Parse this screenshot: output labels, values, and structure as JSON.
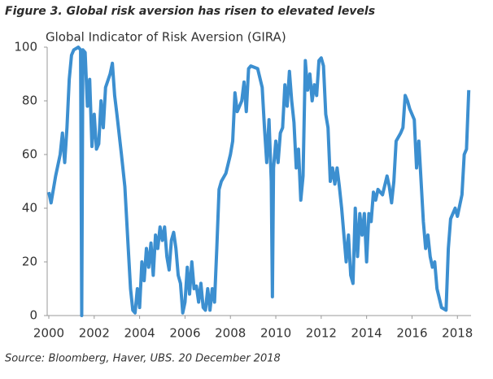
{
  "chart_data": {
    "type": "line",
    "title": "Figure 3. Global risk aversion has risen to elevated levels",
    "subtitle": "Global Indicator of Risk Aversion (GIRA)",
    "source": "Source: Bloomberg, Haver, UBS. 20 December 2018",
    "xlim": [
      2000,
      2018.6
    ],
    "xticks": [
      2000,
      2002,
      2004,
      2006,
      2008,
      2010,
      2012,
      2014,
      2016,
      2018
    ],
    "ylim": [
      0,
      100
    ],
    "yticks": [
      0,
      20,
      40,
      60,
      80,
      100
    ],
    "grid": false,
    "x": [
      2000.0,
      2000.1,
      2000.3,
      2000.5,
      2000.6,
      2000.7,
      2000.8,
      2000.9,
      2001.0,
      2001.1,
      2001.3,
      2001.4,
      2001.45,
      2001.5,
      2001.6,
      2001.7,
      2001.8,
      2001.9,
      2002.0,
      2002.1,
      2002.2,
      2002.3,
      2002.4,
      2002.5,
      2002.7,
      2002.8,
      2002.9,
      2003.0,
      2003.2,
      2003.35,
      2003.5,
      2003.6,
      2003.7,
      2003.8,
      2003.9,
      2004.0,
      2004.1,
      2004.2,
      2004.3,
      2004.4,
      2004.5,
      2004.6,
      2004.7,
      2004.8,
      2004.9,
      2005.0,
      2005.1,
      2005.2,
      2005.3,
      2005.4,
      2005.5,
      2005.6,
      2005.7,
      2005.8,
      2005.9,
      2006.0,
      2006.1,
      2006.2,
      2006.3,
      2006.4,
      2006.5,
      2006.6,
      2006.7,
      2006.8,
      2006.9,
      2007.0,
      2007.1,
      2007.2,
      2007.3,
      2007.4,
      2007.5,
      2007.6,
      2007.8,
      2008.0,
      2008.1,
      2008.2,
      2008.3,
      2008.5,
      2008.6,
      2008.7,
      2008.8,
      2008.9,
      2009.2,
      2009.4,
      2009.5,
      2009.6,
      2009.7,
      2009.8,
      2009.85,
      2009.9,
      2010.0,
      2010.1,
      2010.2,
      2010.3,
      2010.4,
      2010.5,
      2010.6,
      2010.7,
      2010.8,
      2010.9,
      2011.0,
      2011.1,
      2011.2,
      2011.3,
      2011.4,
      2011.5,
      2011.6,
      2011.7,
      2011.8,
      2011.9,
      2012.0,
      2012.1,
      2012.2,
      2012.3,
      2012.4,
      2012.5,
      2012.6,
      2012.7,
      2012.8,
      2012.9,
      2013.0,
      2013.1,
      2013.2,
      2013.3,
      2013.4,
      2013.5,
      2013.6,
      2013.7,
      2013.8,
      2013.9,
      2014.0,
      2014.1,
      2014.2,
      2014.3,
      2014.4,
      2014.5,
      2014.7,
      2014.9,
      2015.0,
      2015.1,
      2015.2,
      2015.3,
      2015.5,
      2015.6,
      2015.7,
      2015.8,
      2015.9,
      2016.0,
      2016.1,
      2016.2,
      2016.3,
      2016.4,
      2016.5,
      2016.6,
      2016.7,
      2016.8,
      2016.9,
      2017.0,
      2017.1,
      2017.3,
      2017.5,
      2017.6,
      2017.7,
      2017.9,
      2018.0,
      2018.2,
      2018.3,
      2018.4,
      2018.5
    ],
    "series": [
      {
        "name": "GIRA",
        "color": "#3c8fd0",
        "values": [
          46,
          42,
          52,
          60,
          68,
          57,
          70,
          88,
          97,
          99,
          100,
          99,
          0,
          99,
          98,
          78,
          88,
          63,
          75,
          62,
          64,
          80,
          70,
          85,
          90,
          94,
          82,
          75,
          60,
          48,
          25,
          10,
          2,
          1,
          10,
          3,
          20,
          13,
          25,
          18,
          27,
          15,
          30,
          25,
          33,
          28,
          33,
          22,
          17,
          28,
          31,
          25,
          15,
          12,
          1,
          5,
          18,
          8,
          20,
          10,
          11,
          5,
          12,
          3,
          2,
          10,
          2,
          10,
          5,
          25,
          47,
          50,
          53,
          60,
          65,
          83,
          76,
          80,
          87,
          76,
          92,
          93,
          92,
          85,
          70,
          57,
          73,
          50,
          7,
          55,
          65,
          57,
          68,
          70,
          86,
          78,
          91,
          80,
          72,
          55,
          62,
          43,
          52,
          95,
          84,
          90,
          80,
          86,
          82,
          95,
          96,
          93,
          75,
          70,
          50,
          55,
          49,
          55,
          48,
          40,
          30,
          20,
          30,
          15,
          12,
          40,
          22,
          38,
          30,
          38,
          20,
          38,
          35,
          46,
          43,
          47,
          45,
          52,
          48,
          42,
          50,
          65,
          68,
          70,
          82,
          80,
          77,
          75,
          73,
          55,
          65,
          50,
          35,
          25,
          30,
          22,
          18,
          20,
          10,
          3,
          2,
          25,
          36,
          40,
          37,
          45,
          60,
          62,
          84
        ]
      }
    ]
  }
}
